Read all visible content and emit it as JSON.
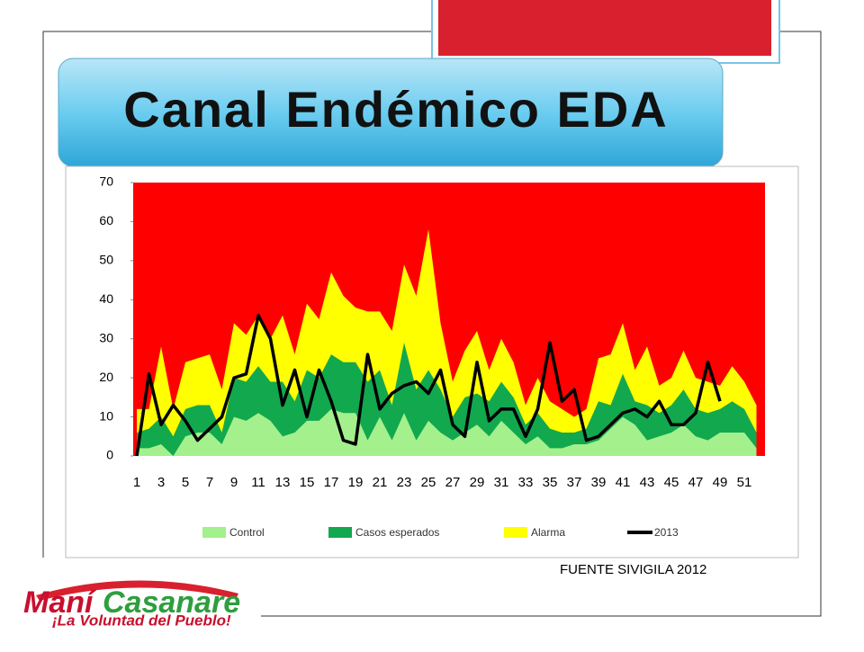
{
  "slide": {
    "title": "Canal Endémico EDA",
    "source": "FUENTE SIVIGILA 2012",
    "logo": {
      "name_red": "Maní",
      "name_green": "Casanare",
      "slogan": "¡La Voluntad del Pueblo!"
    }
  },
  "chart_data": {
    "type": "area",
    "categories": [
      1,
      null,
      3,
      null,
      5,
      null,
      7,
      null,
      9,
      null,
      11,
      null,
      13,
      null,
      15,
      null,
      17,
      null,
      19,
      null,
      21,
      null,
      23,
      null,
      25,
      null,
      27,
      null,
      29,
      null,
      31,
      null,
      33,
      null,
      35,
      null,
      37,
      null,
      39,
      null,
      41,
      null,
      43,
      null,
      45,
      null,
      47,
      null,
      49,
      null,
      51,
      null
    ],
    "plot_color": "#ff0000",
    "ylim": [
      0,
      70
    ],
    "yticks": [
      0,
      10,
      20,
      30,
      40,
      50,
      60,
      70
    ],
    "series": [
      {
        "name": "Control",
        "color": "#a3f08c",
        "kind": "area",
        "values": [
          2,
          2,
          3,
          0,
          5,
          6,
          6,
          3,
          10,
          9,
          11,
          9,
          5,
          6,
          9,
          9,
          12,
          11,
          11,
          4,
          10,
          4,
          11,
          4,
          9,
          6,
          4,
          6,
          8,
          5,
          9,
          6,
          3,
          5,
          2,
          2,
          3,
          3,
          4,
          7,
          10,
          8,
          4,
          5,
          6,
          8,
          5,
          4,
          6,
          6,
          6,
          2
        ]
      },
      {
        "name": "Casos esperados",
        "color": "#12a84e",
        "kind": "area",
        "values": [
          6,
          7,
          10,
          5,
          12,
          13,
          13,
          6,
          20,
          19,
          23,
          19,
          19,
          14,
          22,
          20,
          26,
          24,
          24,
          19,
          22,
          13,
          29,
          17,
          22,
          17,
          10,
          15,
          16,
          14,
          19,
          15,
          8,
          11,
          7,
          6,
          6,
          7,
          14,
          13,
          21,
          14,
          13,
          11,
          13,
          17,
          12,
          11,
          12,
          14,
          12,
          6
        ]
      },
      {
        "name": "Alarma",
        "color": "#ffff00",
        "kind": "area",
        "values": [
          12,
          12,
          28,
          12,
          24,
          25,
          26,
          17,
          34,
          31,
          36,
          30,
          36,
          26,
          39,
          35,
          47,
          41,
          38,
          37,
          37,
          32,
          49,
          41,
          58,
          34,
          19,
          27,
          32,
          22,
          30,
          24,
          13,
          20,
          14,
          12,
          10,
          12,
          25,
          26,
          34,
          22,
          28,
          18,
          20,
          27,
          20,
          19,
          18,
          23,
          19,
          13
        ]
      },
      {
        "name": "2013",
        "color": "#000000",
        "kind": "line",
        "values": [
          0,
          21,
          8,
          13,
          9,
          4,
          7,
          10,
          20,
          21,
          36,
          30,
          13,
          22,
          10,
          22,
          14,
          4,
          3,
          26,
          12,
          16,
          18,
          19,
          16,
          22,
          8,
          5,
          24,
          9,
          12,
          12,
          5,
          12,
          29,
          14,
          17,
          4,
          5,
          8,
          11,
          12,
          10,
          14,
          8,
          8,
          11,
          24,
          14,
          null,
          null,
          null
        ]
      }
    ]
  }
}
